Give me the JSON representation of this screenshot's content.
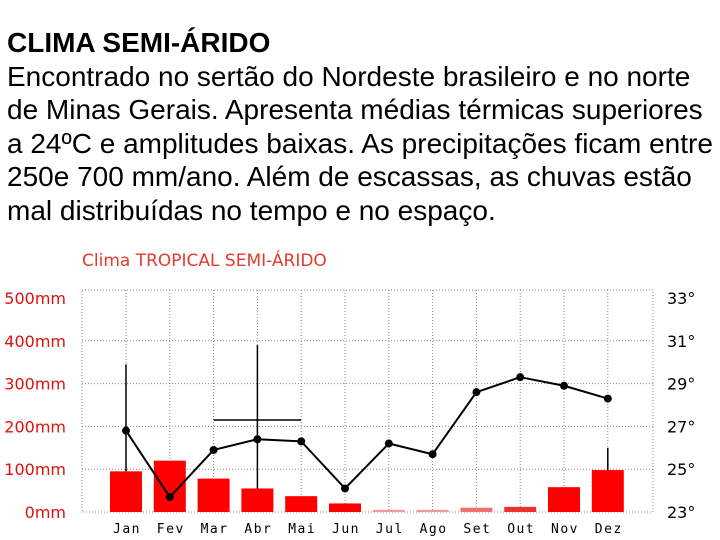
{
  "page": {
    "heading": "CLIMA SEMI-ÁRIDO",
    "body_lines": [
      "Encontrado no sertão do Nordeste brasileiro e no norte",
      "de Minas Gerais. Apresenta médias térmicas superiores",
      "a 24ºC e amplitudes baixas. As precipitações ficam entre",
      "250e 700 mm/ano. Além de escassas, as chuvas estão",
      "mal distribuídas no tempo e no espaço."
    ]
  },
  "chart_data": {
    "type": "bar",
    "title": "Clima TROPICAL SEMI-ÁRIDO",
    "categories": [
      "Jan",
      "Fev",
      "Mar",
      "Abr",
      "Mai",
      "Jun",
      "Jul",
      "Ago",
      "Set",
      "Out",
      "Nov",
      "Dez"
    ],
    "series": [
      {
        "type": "bar",
        "y_axis": "left",
        "values": [
          95,
          120,
          78,
          55,
          37,
          20,
          5,
          5,
          10,
          12,
          58,
          98
        ]
      },
      {
        "type": "line",
        "y_axis": "right",
        "values": [
          26.8,
          23.7,
          25.9,
          26.4,
          26.3,
          24.1,
          26.2,
          25.7,
          28.6,
          29.3,
          28.9,
          28.3
        ]
      }
    ],
    "left_axis": {
      "ylim": [
        0,
        500
      ],
      "tick_values": [
        0,
        100,
        200,
        300,
        400,
        500
      ],
      "tick_labels": [
        "0mm",
        "100mm",
        "200mm",
        "300mm",
        "400mm",
        "500mm"
      ]
    },
    "right_axis": {
      "ylim": [
        23,
        33
      ],
      "tick_values": [
        23,
        25,
        27,
        29,
        31,
        33
      ],
      "tick_labels": [
        "23°",
        "25°",
        "27°",
        "29°",
        "31°",
        "33°"
      ]
    },
    "range_lines": [
      {
        "x_index": 0,
        "from": 95,
        "to": 345
      },
      {
        "x_index": 3,
        "from": 55,
        "to": 390
      },
      {
        "x_index": 11,
        "from": 98,
        "to": 150
      }
    ],
    "horizontal_segments": [
      {
        "from_index": 2,
        "to_index": 4,
        "value": 215
      }
    ],
    "grid": true,
    "colors": {
      "title": "#e23b2e",
      "left_axis_labels": "#e01010",
      "right_axis_labels": "#000000",
      "line": "#000000",
      "bars": [
        "#ff0000",
        "#ff0000",
        "#ff0000",
        "#ff0000",
        "#ff0000",
        "#ff0000",
        "#f29a9a",
        "#f29a9a",
        "#f07070",
        "#ee3030",
        "#ff0000",
        "#ff0000"
      ]
    }
  }
}
